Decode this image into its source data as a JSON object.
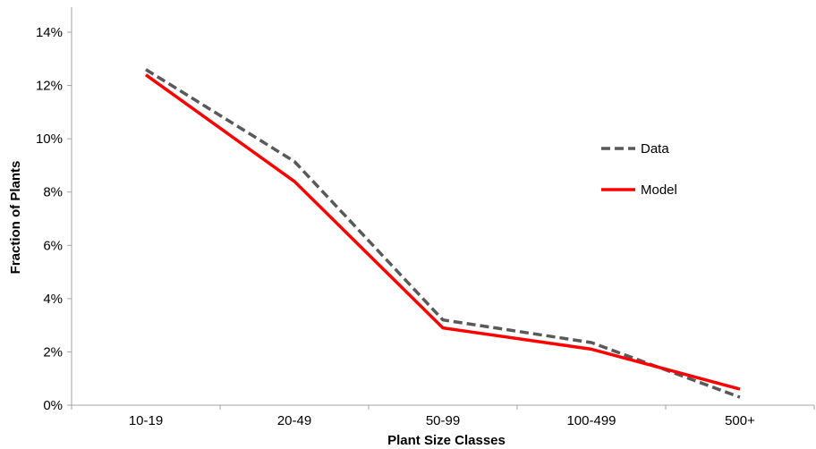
{
  "chart_data": {
    "type": "line",
    "categories": [
      "10-19",
      "20-49",
      "50-99",
      "100-499",
      "500+"
    ],
    "series": [
      {
        "name": "Data",
        "values": [
          0.126,
          0.0915,
          0.032,
          0.0235,
          0.003
        ],
        "color": "#595959",
        "dash": "dashed"
      },
      {
        "name": "Model",
        "values": [
          0.124,
          0.084,
          0.029,
          0.021,
          0.006
        ],
        "color": "#ff0000",
        "dash": "solid"
      }
    ],
    "xlabel": "Plant Size Classes",
    "ylabel": "Fraction of Plants",
    "ylim": [
      0,
      0.14
    ],
    "yticks": [
      "0%",
      "2%",
      "4%",
      "6%",
      "8%",
      "10%",
      "12%",
      "14%"
    ],
    "grid": false,
    "legend_position": "right"
  }
}
